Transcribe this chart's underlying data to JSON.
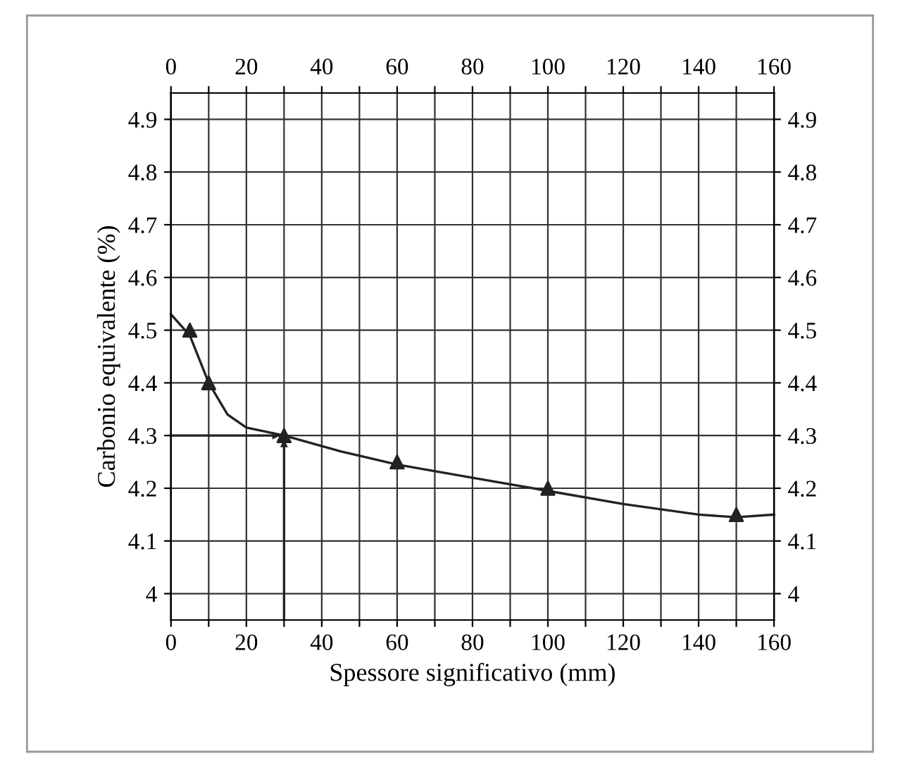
{
  "chart_data": {
    "type": "line",
    "xlabel": "Spessore significativo (mm)",
    "ylabel": "Carbonio equivalente (%)",
    "xlim": [
      0,
      160
    ],
    "xticks": [
      0,
      {
        "value": 10,
        "label": null
      },
      20,
      {
        "value": 30,
        "label": null
      },
      40,
      {
        "value": 50,
        "label": null
      },
      60,
      {
        "value": 70,
        "label": null
      },
      80,
      {
        "value": 90,
        "label": null
      },
      100,
      {
        "value": 110,
        "label": null
      },
      120,
      {
        "value": 130,
        "label": null
      },
      140,
      {
        "value": 150,
        "label": null
      },
      160
    ],
    "x2lim": [
      0,
      160
    ],
    "x2ticks": [
      0,
      {
        "value": 10,
        "label": null
      },
      20,
      {
        "value": 30,
        "label": null
      },
      40,
      {
        "value": 50,
        "label": null
      },
      60,
      {
        "value": 70,
        "label": null
      },
      80,
      {
        "value": 90,
        "label": null
      },
      100,
      {
        "value": 110,
        "label": null
      },
      120,
      {
        "value": 130,
        "label": null
      },
      140,
      {
        "value": 150,
        "label": null
      },
      160
    ],
    "ylim": [
      3.95,
      4.95
    ],
    "yticks": [
      4,
      4.1,
      4.2,
      4.3,
      4.4,
      4.5,
      4.6,
      4.7,
      4.8,
      4.9
    ],
    "y2lim": [
      3.95,
      4.95
    ],
    "y2ticks": [
      4,
      4.1,
      4.2,
      4.3,
      4.4,
      4.5,
      4.6,
      4.7,
      4.8,
      4.9
    ],
    "grid": true,
    "series": [
      {
        "type": "scatter",
        "color": "#222222",
        "marker": "triangle",
        "x": [
          5,
          10,
          30,
          60,
          100,
          150
        ],
        "values": [
          4.5,
          4.4,
          4.3,
          4.25,
          4.2,
          4.15
        ]
      },
      {
        "color": "#222222",
        "marker": "none",
        "x": [
          0,
          5,
          10,
          15,
          20,
          30,
          45,
          60,
          80,
          100,
          120,
          140,
          150,
          160
        ],
        "values": [
          4.53,
          4.49,
          4.4,
          4.34,
          4.315,
          4.3,
          4.27,
          4.245,
          4.22,
          4.195,
          4.17,
          4.15,
          4.145,
          4.15
        ]
      }
    ],
    "ref_lines": [
      {
        "axis": "y",
        "value": 4.3,
        "color": "#222222"
      },
      {
        "axis": "x",
        "value": 30,
        "color": "#222222"
      }
    ]
  }
}
